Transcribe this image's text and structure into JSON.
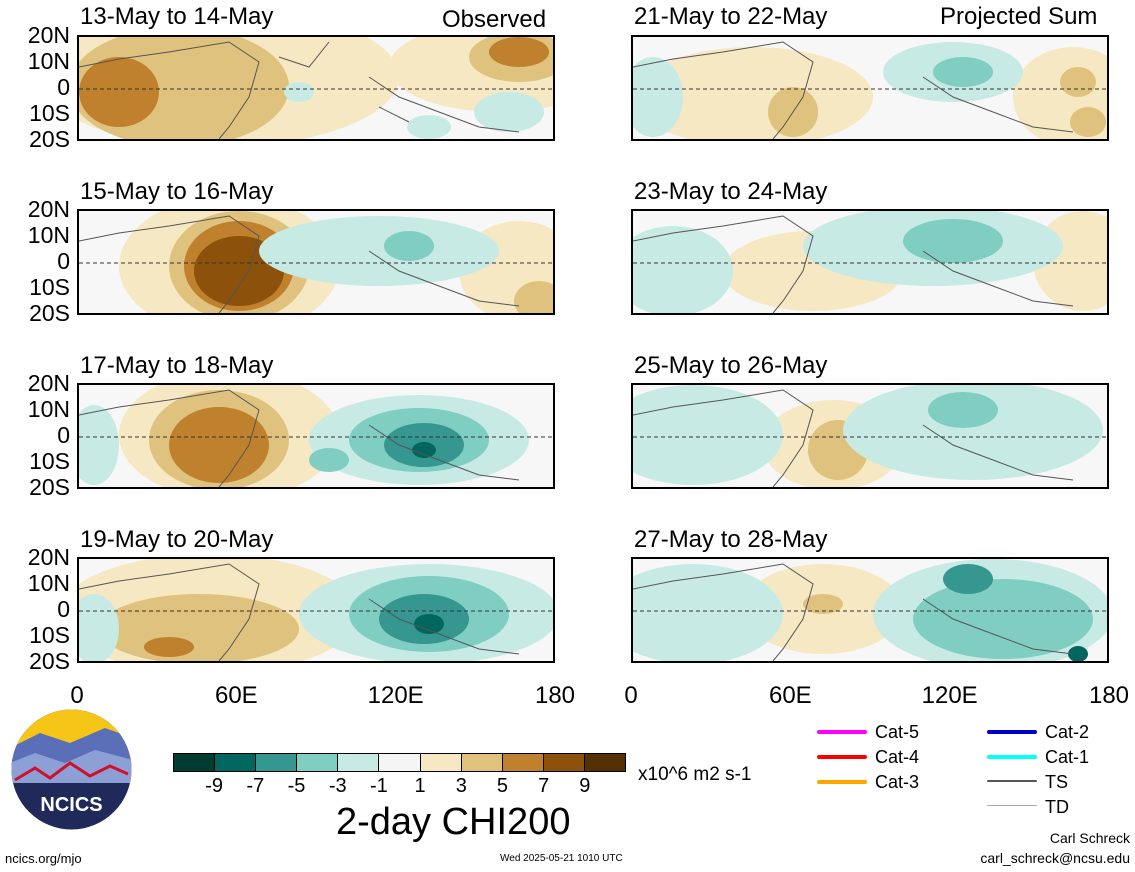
{
  "panels": [
    {
      "title": "13-May to 14-May",
      "tag": "Observed"
    },
    {
      "title": "21-May to 22-May",
      "tag": "Projected Sum"
    },
    {
      "title": "15-May to 16-May",
      "tag": ""
    },
    {
      "title": "23-May to 24-May",
      "tag": ""
    },
    {
      "title": "17-May to 18-May",
      "tag": ""
    },
    {
      "title": "25-May to 26-May",
      "tag": ""
    },
    {
      "title": "19-May to 20-May",
      "tag": ""
    },
    {
      "title": "27-May to 28-May",
      "tag": ""
    }
  ],
  "lat_labels": [
    "20N",
    "10N",
    "0",
    "10S",
    "20S"
  ],
  "lon_labels": [
    "0",
    "60E",
    "120E",
    "180"
  ],
  "colorbar": {
    "ticks": [
      "-9",
      "-7",
      "-5",
      "-3",
      "-1",
      "1",
      "3",
      "5",
      "7",
      "9"
    ],
    "colors": [
      "#003c30",
      "#01665e",
      "#35978f",
      "#80cdc1",
      "#c7eae5",
      "#f5f5f5",
      "#f6e8c3",
      "#dfc27d",
      "#bf812d",
      "#8c510a",
      "#543005"
    ],
    "units": "x10^6 m2 s-1",
    "title": "2-day CHI200"
  },
  "storm_legend": [
    {
      "label": "Cat-5",
      "color": "#ff00ff"
    },
    {
      "label": "Cat-4",
      "color": "#ff0000"
    },
    {
      "label": "Cat-3",
      "color": "#ffa500"
    },
    {
      "label": "Cat-2",
      "color": "#0000cd"
    },
    {
      "label": "Cat-1",
      "color": "#00ffff"
    },
    {
      "label": "TS",
      "color": "#555555"
    },
    {
      "label": "TD",
      "color": "#aaaaaa"
    }
  ],
  "logo_text": "NCICS",
  "footer": {
    "site": "ncics.org/mjo",
    "timestamp": "Wed 2025-05-21 1010 UTC",
    "author": "Carl Schreck",
    "email": "carl_schreck@ncsu.edu"
  }
}
